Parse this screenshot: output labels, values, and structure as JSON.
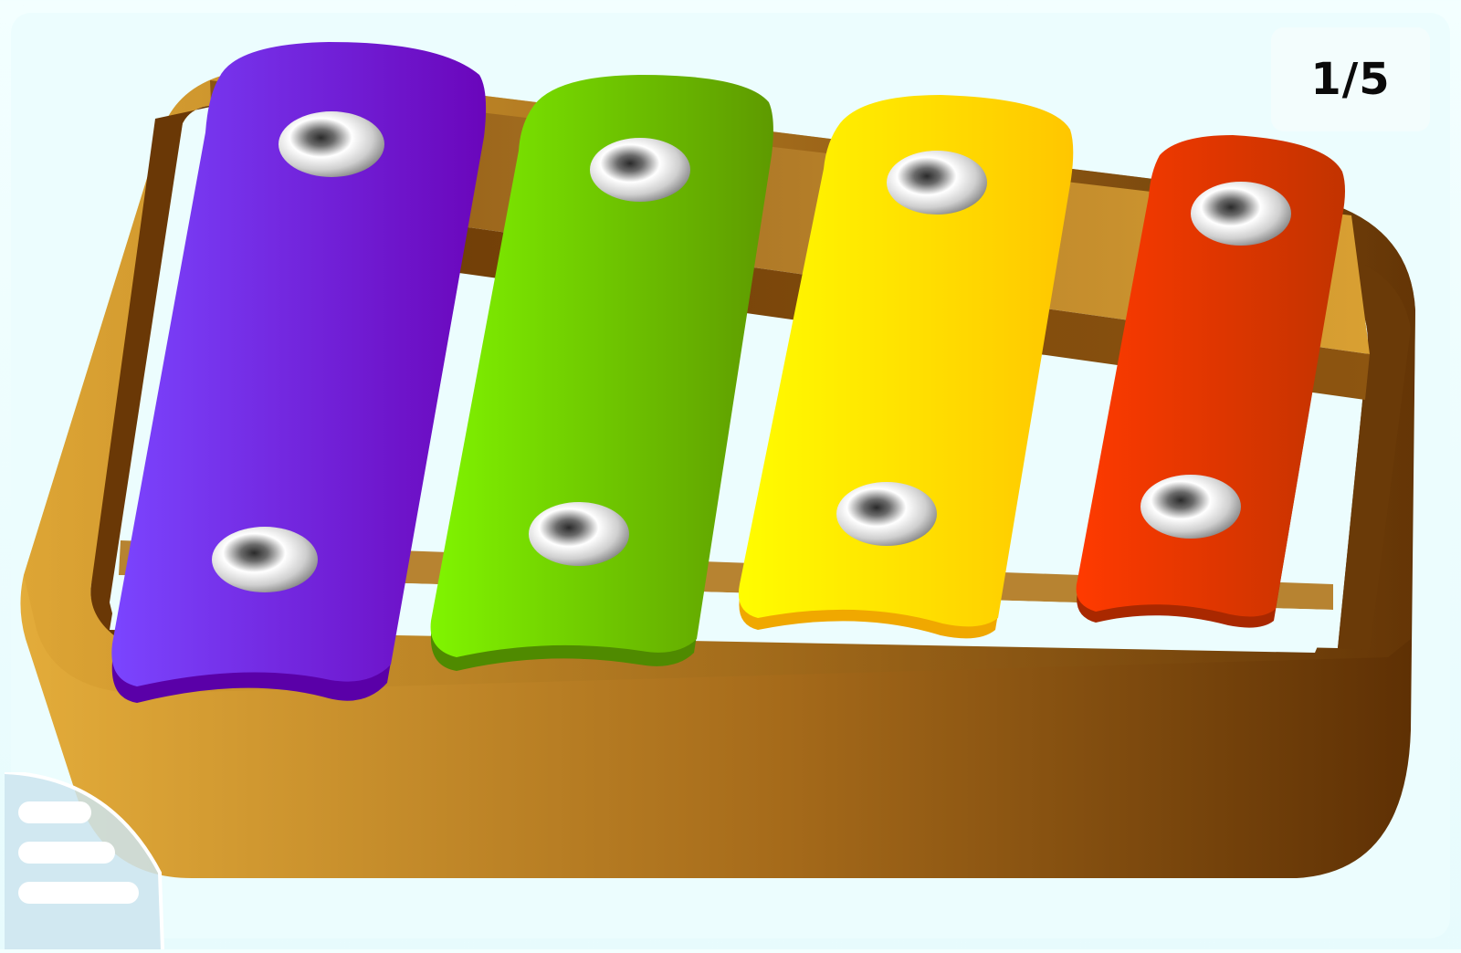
{
  "game": {
    "title": "",
    "progress_label": "1/5",
    "progress": {
      "current": 1,
      "total": 5
    }
  },
  "xylophone": {
    "bars": [
      {
        "id": "purple",
        "color_light": "#7b45ff",
        "color_dark": "#6a00b8",
        "rim": "#5a00a8"
      },
      {
        "id": "green",
        "color_light": "#7ff500",
        "color_dark": "#5c9e00",
        "rim": "#4f8a00"
      },
      {
        "id": "yellow",
        "color_light": "#fffb00",
        "color_dark": "#ffc400",
        "rim": "#f0a800"
      },
      {
        "id": "red",
        "color_light": "#ff3a00",
        "color_dark": "#c43100",
        "rim": "#a92800"
      }
    ],
    "frame_colors": {
      "light": "#e3ac3a",
      "dark": "#5e3004"
    }
  },
  "menu": {
    "icon": "hamburger-menu-icon"
  }
}
